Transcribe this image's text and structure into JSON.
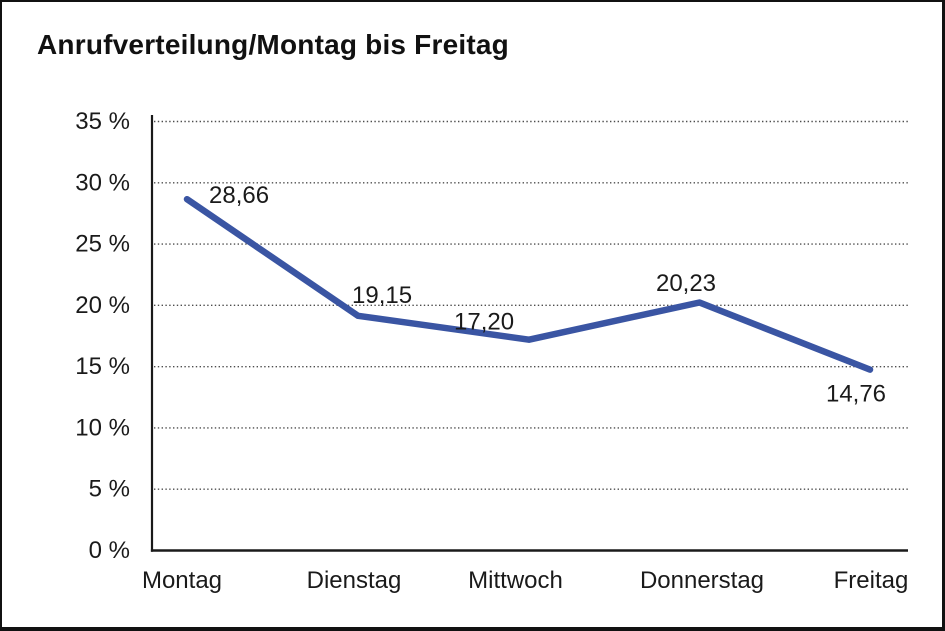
{
  "page": {
    "title": "Anrufverteilung/Montag bis Freitag"
  },
  "chart_data": {
    "type": "line",
    "title": "Anrufverteilung/Montag bis Freitag",
    "categories": [
      "Montag",
      "Dienstag",
      "Mittwoch",
      "Donnerstag",
      "Freitag"
    ],
    "series": [
      {
        "name": "Anrufverteilung",
        "values": [
          28.66,
          19.15,
          17.2,
          20.23,
          14.76
        ],
        "value_labels": [
          "28,66",
          "19,15",
          "17,20",
          "20,23",
          "14,76"
        ]
      }
    ],
    "xlabel": "",
    "ylabel": "",
    "ylim": [
      0,
      35
    ],
    "y_tick_step": 5,
    "y_tick_labels": [
      "0 %",
      "5 %",
      "10 %",
      "15 %",
      "20 %",
      "25 %",
      "30 %",
      "35 %"
    ],
    "grid": "horizontal-dotted",
    "legend_position": "none",
    "colors": {
      "line": "#3A55A3",
      "axis": "#1a1a1a",
      "gridline": "#4d4d4d",
      "text": "#1a1a1a",
      "background": "#ffffff",
      "frame_border": "#111111"
    }
  }
}
